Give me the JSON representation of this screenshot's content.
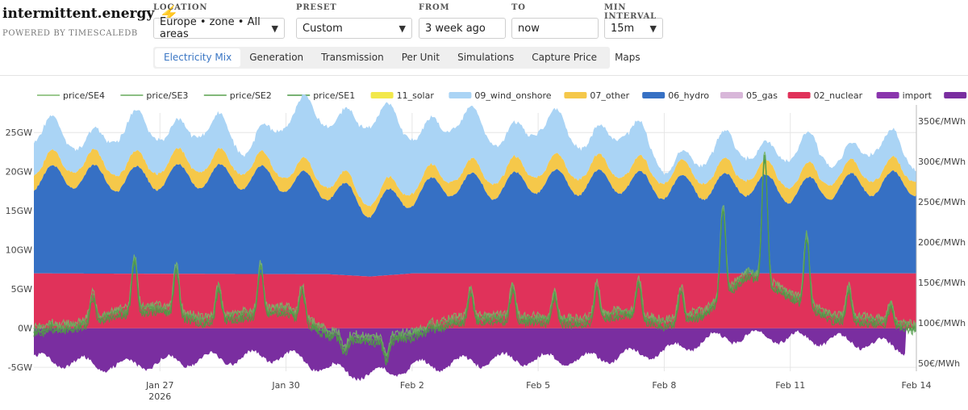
{
  "brand": {
    "title": "intermittent.energy",
    "subtitle": "POWERED BY TIMESCALEDB"
  },
  "controls": {
    "location": {
      "label": "LOCATION",
      "value": "Europe • zone • All areas"
    },
    "preset": {
      "label": "PRESET",
      "value": "Custom"
    },
    "from": {
      "label": "FROM",
      "value": "3 week ago"
    },
    "to": {
      "label": "TO",
      "value": "now"
    },
    "interval": {
      "label": "MIN INTERVAL",
      "value": "15m"
    }
  },
  "tabs": [
    "Electricity Mix",
    "Generation",
    "Transmission",
    "Per Unit",
    "Simulations",
    "Capture Price",
    "Maps"
  ],
  "active_tab": "Electricity Mix",
  "chart_data": {
    "type": "area",
    "x_range": [
      "2026-01-24",
      "2026-02-14"
    ],
    "x_ticks": [
      {
        "date": "2026-01-27",
        "label": "Jan 27",
        "sublabel": "2026"
      },
      {
        "date": "2026-01-30",
        "label": "Jan 30"
      },
      {
        "date": "2026-02-02",
        "label": "Feb 2"
      },
      {
        "date": "2026-02-05",
        "label": "Feb 5"
      },
      {
        "date": "2026-02-08",
        "label": "Feb 8"
      },
      {
        "date": "2026-02-11",
        "label": "Feb 11"
      },
      {
        "date": "2026-02-14",
        "label": "Feb 14"
      }
    ],
    "y_left": {
      "unit": "GW",
      "range": [
        -5.5,
        27.5
      ],
      "ticks": [
        "-5GW",
        "0W",
        "5GW",
        "10GW",
        "15GW",
        "20GW",
        "25GW"
      ],
      "tick_values": [
        -5,
        0,
        5,
        10,
        15,
        20,
        25
      ]
    },
    "y_right": {
      "unit": "€/MWh",
      "range": [
        40,
        360
      ],
      "ticks": [
        "50€/MWh",
        "100€/MWh",
        "150€/MWh",
        "200€/MWh",
        "250€/MWh",
        "300€/MWh",
        "350€/MWh"
      ],
      "tick_values": [
        50,
        100,
        150,
        200,
        250,
        300,
        350
      ]
    },
    "grid": true,
    "legend_placement": "top",
    "legend": [
      {
        "name": "price/SE4",
        "kind": "line",
        "color": "#7cb76a"
      },
      {
        "name": "price/SE3",
        "kind": "line",
        "color": "#66aa5c"
      },
      {
        "name": "price/SE2",
        "kind": "line",
        "color": "#58a04f"
      },
      {
        "name": "price/SE1",
        "kind": "line",
        "color": "#4c9945"
      },
      {
        "name": "11_solar",
        "kind": "area",
        "color": "#f2e84b"
      },
      {
        "name": "09_wind_onshore",
        "kind": "area",
        "color": "#aad4f5"
      },
      {
        "name": "07_other",
        "kind": "area",
        "color": "#f5c84a"
      },
      {
        "name": "06_hydro",
        "kind": "area",
        "color": "#3670c4"
      },
      {
        "name": "05_gas",
        "kind": "area",
        "color": "#d8b7d9"
      },
      {
        "name": "02_nuclear",
        "kind": "area",
        "color": "#e0325a"
      },
      {
        "name": "import",
        "kind": "area",
        "color": "#8a35ad"
      },
      {
        "name": "export",
        "kind": "area",
        "color": "#7a2ea0"
      }
    ],
    "series": [
      {
        "name": "02_nuclear",
        "note_points": [
          [
            "2026-01-24",
            7.0
          ],
          [
            "2026-01-31",
            6.9
          ],
          [
            "2026-02-01",
            6.6
          ],
          [
            "2026-02-02",
            7.0
          ],
          [
            "2026-02-14",
            7.0
          ]
        ]
      },
      {
        "name": "06_hydro",
        "points": [
          [
            "2026-01-24",
            12.0
          ],
          [
            "2026-01-25",
            12.5
          ],
          [
            "2026-01-26",
            12.0
          ],
          [
            "2026-01-27",
            12.3
          ],
          [
            "2026-01-28",
            12.5
          ],
          [
            "2026-01-29",
            12.4
          ],
          [
            "2026-01-30",
            12.0
          ],
          [
            "2026-01-31",
            11.0
          ],
          [
            "2026-02-01",
            9.0
          ],
          [
            "2026-02-02",
            10.0
          ],
          [
            "2026-02-03",
            11.5
          ],
          [
            "2026-02-04",
            11.0
          ],
          [
            "2026-02-05",
            11.8
          ],
          [
            "2026-02-06",
            11.5
          ],
          [
            "2026-02-07",
            11.8
          ],
          [
            "2026-02-08",
            11.0
          ],
          [
            "2026-02-09",
            11.0
          ],
          [
            "2026-02-10",
            11.5
          ],
          [
            "2026-02-11",
            10.5
          ],
          [
            "2026-02-12",
            11.0
          ],
          [
            "2026-02-13",
            11.5
          ],
          [
            "2026-02-14",
            11.5
          ]
        ]
      },
      {
        "name": "07_other",
        "points": [
          [
            "2026-01-24",
            1.5
          ],
          [
            "2026-01-28",
            1.6
          ],
          [
            "2026-02-01",
            1.0
          ],
          [
            "2026-02-05",
            1.6
          ],
          [
            "2026-02-09",
            1.5
          ],
          [
            "2026-02-14",
            1.3
          ]
        ]
      },
      {
        "name": "09_wind_onshore",
        "points": [
          [
            "2026-01-24",
            3.5
          ],
          [
            "2026-01-25",
            3.5
          ],
          [
            "2026-01-26",
            3.8
          ],
          [
            "2026-01-27",
            5.0
          ],
          [
            "2026-01-28",
            4.0
          ],
          [
            "2026-01-29",
            3.0
          ],
          [
            "2026-01-30",
            6.0
          ],
          [
            "2026-01-31",
            8.5
          ],
          [
            "2026-02-01",
            9.5
          ],
          [
            "2026-02-02",
            7.5
          ],
          [
            "2026-02-03",
            6.0
          ],
          [
            "2026-02-04",
            5.5
          ],
          [
            "2026-02-05",
            5.0
          ],
          [
            "2026-02-06",
            4.5
          ],
          [
            "2026-02-07",
            4.5
          ],
          [
            "2026-02-08",
            2.0
          ],
          [
            "2026-02-09",
            2.0
          ],
          [
            "2026-02-10",
            3.5
          ],
          [
            "2026-02-11",
            3.0
          ],
          [
            "2026-02-12",
            3.0
          ],
          [
            "2026-02-13",
            3.0
          ],
          [
            "2026-02-14",
            2.0
          ]
        ]
      },
      {
        "name": "export",
        "points": [
          [
            "2026-01-24",
            -4.0
          ],
          [
            "2026-01-26",
            -4.8
          ],
          [
            "2026-01-28",
            -4.0
          ],
          [
            "2026-01-30",
            -3.5
          ],
          [
            "2026-01-31",
            -5.2
          ],
          [
            "2026-02-01",
            -6.0
          ],
          [
            "2026-02-02",
            -5.0
          ],
          [
            "2026-02-04",
            -4.0
          ],
          [
            "2026-02-06",
            -4.0
          ],
          [
            "2026-02-07",
            -3.5
          ],
          [
            "2026-02-08",
            -3.0
          ],
          [
            "2026-02-09",
            -1.5
          ],
          [
            "2026-02-10",
            -1.0
          ],
          [
            "2026-02-12",
            -1.5
          ],
          [
            "2026-02-13",
            -2.0
          ],
          [
            "2026-02-13T18:00",
            -2.5
          ]
        ]
      },
      {
        "name": "price/SE3",
        "points": [
          [
            "2026-01-24",
            95
          ],
          [
            "2026-01-25",
            110
          ],
          [
            "2026-01-26",
            160
          ],
          [
            "2026-01-27",
            175
          ],
          [
            "2026-01-28",
            130
          ],
          [
            "2026-01-29",
            150
          ],
          [
            "2026-01-30",
            170
          ],
          [
            "2026-01-31",
            85
          ],
          [
            "2026-02-01",
            60
          ],
          [
            "2026-02-02",
            80
          ],
          [
            "2026-02-03",
            130
          ],
          [
            "2026-02-04",
            140
          ],
          [
            "2026-02-05",
            135
          ],
          [
            "2026-02-06",
            125
          ],
          [
            "2026-02-07",
            160
          ],
          [
            "2026-02-08",
            120
          ],
          [
            "2026-02-09",
            160
          ],
          [
            "2026-02-10",
            300
          ],
          [
            "2026-02-11",
            220
          ],
          [
            "2026-02-12",
            140
          ],
          [
            "2026-02-13",
            130
          ],
          [
            "2026-02-14",
            105
          ]
        ]
      }
    ]
  }
}
